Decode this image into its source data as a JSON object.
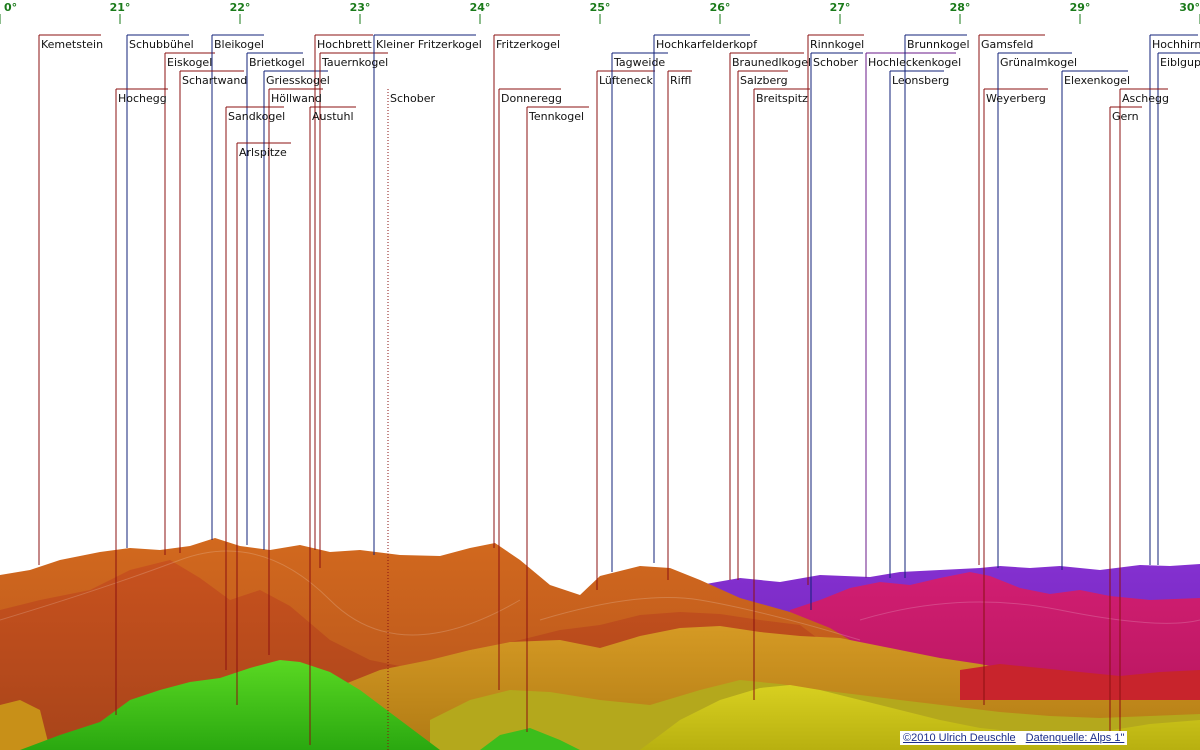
{
  "degree_labels": [
    "0°",
    "21°",
    "22°",
    "23°",
    "24°",
    "25°",
    "26°",
    "27°",
    "28°",
    "29°",
    "30°"
  ],
  "peaks": [
    {
      "name": "Kemetstein",
      "line": "red"
    },
    {
      "name": "Schubbühel",
      "line": "blue"
    },
    {
      "name": "Hochegg",
      "line": "red"
    },
    {
      "name": "Eiskogel",
      "line": "red"
    },
    {
      "name": "Bleikogel",
      "line": "blue"
    },
    {
      "name": "Schartwand",
      "line": "red"
    },
    {
      "name": "Brietkogel",
      "line": "blue"
    },
    {
      "name": "Sandkogel",
      "line": "red"
    },
    {
      "name": "Arlspitze",
      "line": "red"
    },
    {
      "name": "Griesskogel",
      "line": "blue"
    },
    {
      "name": "Höllwand",
      "line": "red"
    },
    {
      "name": "Hochbrett",
      "line": "red"
    },
    {
      "name": "Austuhl",
      "line": "red"
    },
    {
      "name": "Tauernkogel",
      "line": "red"
    },
    {
      "name": "Kleiner Fritzerkogel",
      "line": "blue"
    },
    {
      "name": "Schober",
      "line": "dotted"
    },
    {
      "name": "Fritzerkogel",
      "line": "red"
    },
    {
      "name": "Donneregg",
      "line": "red"
    },
    {
      "name": "Tennkogel",
      "line": "red"
    },
    {
      "name": "Lüfteneck",
      "line": "red"
    },
    {
      "name": "Tagweide",
      "line": "blue"
    },
    {
      "name": "Hochkarfelderkopf",
      "line": "blue"
    },
    {
      "name": "Riffl",
      "line": "red"
    },
    {
      "name": "Braunedlkogel",
      "line": "red"
    },
    {
      "name": "Salzberg",
      "line": "red"
    },
    {
      "name": "Breitspitz",
      "line": "red"
    },
    {
      "name": "Rinnkogel",
      "line": "red"
    },
    {
      "name": "Schober",
      "line": "blue"
    },
    {
      "name": "Hochleckenkogel",
      "line": "purple"
    },
    {
      "name": "Brunnkogel",
      "line": "blue"
    },
    {
      "name": "Leonsberg",
      "line": "blue"
    },
    {
      "name": "Gamsfeld",
      "line": "red"
    },
    {
      "name": "Weyerberg",
      "line": "red"
    },
    {
      "name": "Grünalmkogel",
      "line": "blue"
    },
    {
      "name": "Elexenkogel",
      "line": "blue"
    },
    {
      "name": "Hochhirn",
      "line": "blue"
    },
    {
      "name": "Eiblgupf",
      "line": "blue"
    },
    {
      "name": "Aschegg",
      "line": "red"
    },
    {
      "name": "Gern",
      "line": "red"
    }
  ],
  "line_colors": {
    "red": "#8b1010",
    "blue": "#10207a",
    "purple": "#6a1a8a",
    "dotted": "#8b1010"
  },
  "terrain_colors": {
    "far_orange": "#d1641e",
    "far_brown": "#c25020",
    "mid_purple": "#7b2bc4",
    "magenta": "#c0186a",
    "amber": "#c9901c",
    "olive": "#b0a820",
    "yellow": "#d4d41a",
    "lime": "#8fd428",
    "green": "#3cc81c"
  },
  "credits": {
    "copyright": "©2010 Ulrich Deuschle",
    "source": "Datenquelle: Alps 1\""
  }
}
